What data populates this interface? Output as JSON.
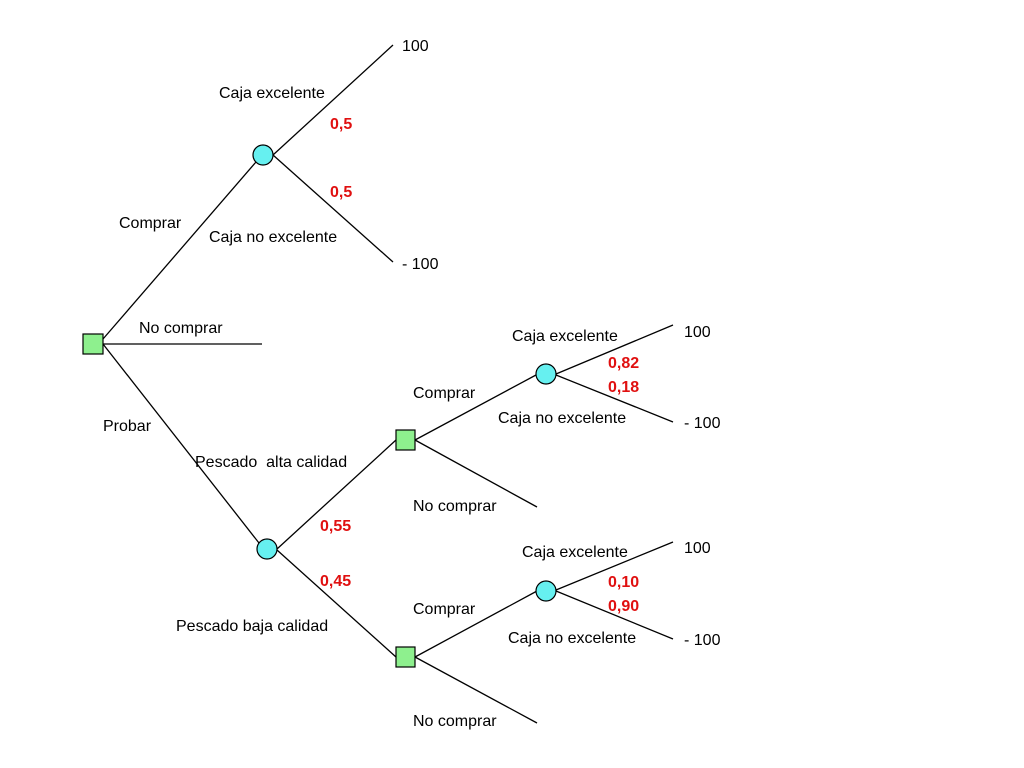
{
  "colors": {
    "decision_fill": "#8ef08e",
    "chance_fill": "#66f0f0",
    "probability_text": "#e01010",
    "line": "#000000"
  },
  "nodes": {
    "root": {
      "type": "decision",
      "shape": "square"
    },
    "buy_chance": {
      "type": "chance",
      "shape": "circle"
    },
    "test_chance": {
      "type": "chance",
      "shape": "circle"
    },
    "high_decision": {
      "type": "decision",
      "shape": "square"
    },
    "high_chance": {
      "type": "chance",
      "shape": "circle"
    },
    "low_decision": {
      "type": "decision",
      "shape": "square"
    },
    "low_chance": {
      "type": "chance",
      "shape": "circle"
    }
  },
  "branches": {
    "root_buy": "Comprar",
    "root_no_buy": "No comprar",
    "root_test": "Probar",
    "buy_excellent": "Caja excelente",
    "buy_not_excellent": "Caja no excelente",
    "test_high": "Pescado  alta calidad",
    "test_low": "Pescado baja calidad",
    "high_buy": "Comprar",
    "high_no_buy": "No comprar",
    "high_excellent": "Caja excelente",
    "high_not_excellent": "Caja no excelente",
    "low_buy": "Comprar",
    "low_no_buy": "No comprar",
    "low_excellent": "Caja excelente",
    "low_not_excellent": "Caja no excelente"
  },
  "probabilities": {
    "buy_excellent": "0,5",
    "buy_not_excellent": "0,5",
    "test_high": "0,55",
    "test_low": "0,45",
    "high_excellent": "0,82",
    "high_not_excellent": "0,18",
    "low_excellent": "0,10",
    "low_not_excellent": "0,90"
  },
  "payoffs": {
    "buy_excellent": "100",
    "buy_not_excellent": "- 100",
    "high_excellent": "100",
    "high_not_excellent": "- 100",
    "low_excellent": "100",
    "low_not_excellent": "- 100"
  }
}
